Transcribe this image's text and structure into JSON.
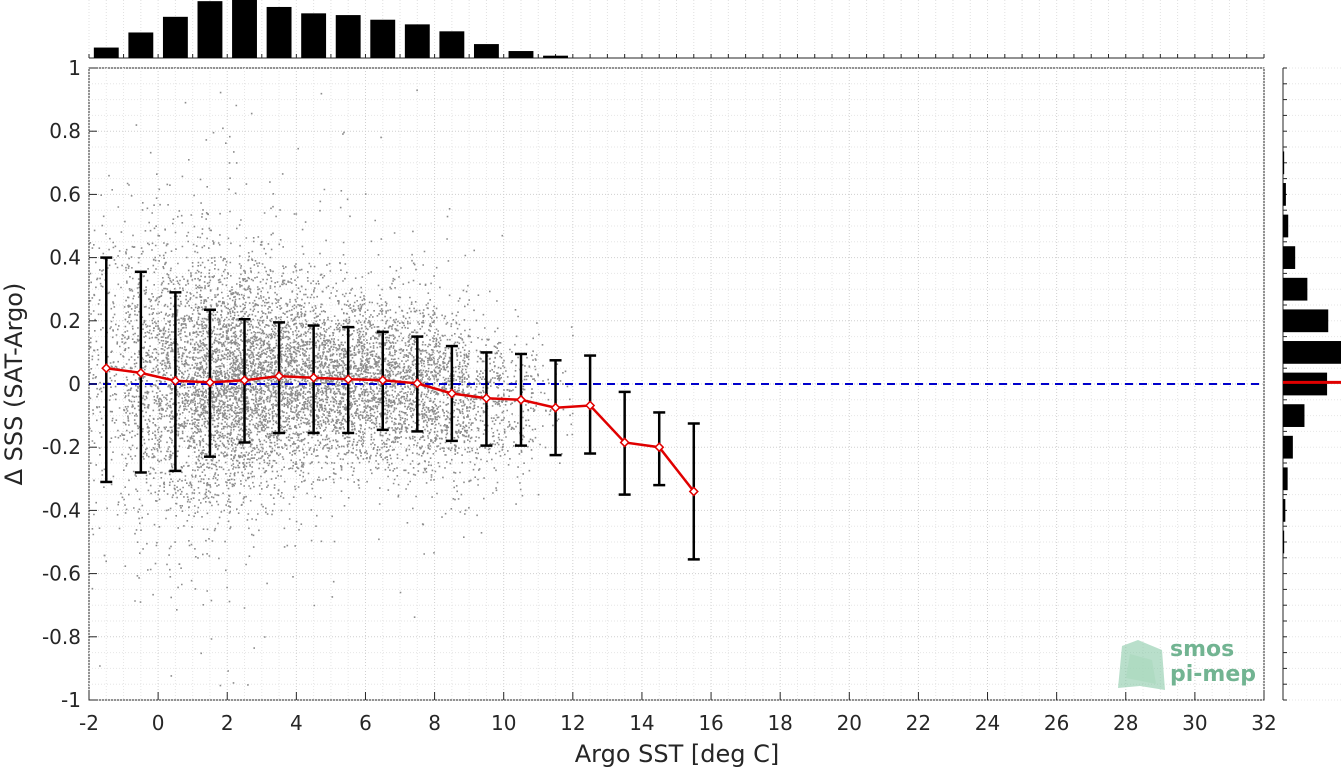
{
  "chart_data": {
    "type": "scatter",
    "xlabel": "Argo SST [deg C]",
    "ylabel": "Δ SSS (SAT-Argo)",
    "xlim": [
      -2,
      32
    ],
    "ylim": [
      -1,
      1
    ],
    "xticks": [
      -2,
      0,
      2,
      4,
      6,
      8,
      10,
      12,
      14,
      16,
      18,
      20,
      22,
      24,
      26,
      28,
      30,
      32
    ],
    "yticks": [
      -1,
      -0.8,
      -0.6,
      -0.4,
      -0.2,
      0,
      0.2,
      0.4,
      0.6,
      0.8,
      1
    ],
    "xtick_labels": [
      "-2",
      "0",
      "2",
      "4",
      "6",
      "8",
      "10",
      "12",
      "14",
      "16",
      "18",
      "20",
      "22",
      "24",
      "26",
      "28",
      "30",
      "32"
    ],
    "ytick_labels": [
      "-1",
      "-0.8",
      "-0.6",
      "-0.4",
      "-0.2",
      "0",
      "0.2",
      "0.4",
      "0.6",
      "0.8",
      "1"
    ],
    "grid": true,
    "reference_line": {
      "y": 0,
      "style": "dashed",
      "color": "#0000cc"
    },
    "binned_mean": {
      "color": "#e00000",
      "x": [
        -1.5,
        -0.5,
        0.5,
        1.5,
        2.5,
        3.5,
        4.5,
        5.5,
        6.5,
        7.5,
        8.5,
        9.5,
        10.5,
        11.5,
        12.5,
        13.5,
        14.5,
        15.5
      ],
      "mean": [
        0.05,
        0.035,
        0.01,
        0.005,
        0.012,
        0.025,
        0.02,
        0.015,
        0.012,
        0.002,
        -0.03,
        -0.045,
        -0.05,
        -0.075,
        -0.068,
        -0.185,
        -0.2,
        -0.34
      ],
      "err_low": [
        -0.31,
        -0.28,
        -0.275,
        -0.23,
        -0.185,
        -0.155,
        -0.155,
        -0.155,
        -0.145,
        -0.15,
        -0.18,
        -0.195,
        -0.195,
        -0.225,
        -0.22,
        -0.35,
        -0.32,
        -0.555
      ],
      "err_high": [
        0.4,
        0.355,
        0.29,
        0.235,
        0.205,
        0.195,
        0.185,
        0.18,
        0.165,
        0.15,
        0.12,
        0.1,
        0.095,
        0.075,
        0.09,
        -0.025,
        -0.09,
        -0.125
      ]
    },
    "scatter_cloud": {
      "color": "#808080",
      "spread_by_sst": [
        {
          "x": -1.5,
          "std": 0.25
        },
        {
          "x": 0.5,
          "std": 0.22
        },
        {
          "x": 2.5,
          "std": 0.17
        },
        {
          "x": 4.5,
          "std": 0.15
        },
        {
          "x": 6.5,
          "std": 0.13
        },
        {
          "x": 8.5,
          "std": 0.13
        },
        {
          "x": 10.5,
          "std": 0.12
        },
        {
          "x": 12.0,
          "std": 0.11
        }
      ]
    },
    "top_histogram": {
      "bin_centers": [
        -1.5,
        -0.5,
        0.5,
        1.5,
        2.5,
        3.5,
        4.5,
        5.5,
        6.5,
        7.5,
        8.5,
        9.5,
        10.5,
        11.5
      ],
      "relative_counts": [
        0.18,
        0.44,
        0.71,
        0.98,
        1.0,
        0.88,
        0.77,
        0.74,
        0.66,
        0.58,
        0.46,
        0.24,
        0.12,
        0.04
      ]
    },
    "right_histogram": {
      "bin_centers": [
        0.7,
        0.6,
        0.5,
        0.4,
        0.3,
        0.2,
        0.1,
        0.0,
        -0.1,
        -0.2,
        -0.3,
        -0.4,
        -0.5
      ],
      "relative_counts": [
        0.02,
        0.05,
        0.09,
        0.21,
        0.42,
        0.78,
        1.0,
        0.76,
        0.37,
        0.17,
        0.08,
        0.04,
        0.02
      ],
      "median_line_color": "#e00000"
    }
  },
  "logo": {
    "line1": "smos",
    "line2": "pi-mep",
    "color": "#5aa87f"
  }
}
